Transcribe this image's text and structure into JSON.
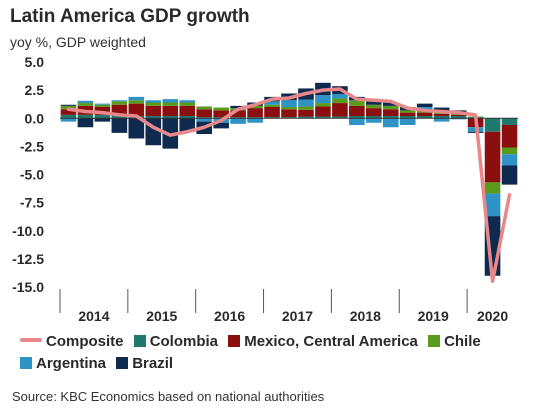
{
  "header": {
    "title": "Latin America GDP growth",
    "subtitle": "yoy %, GDP weighted"
  },
  "footer": {
    "source": "Source: KBC Economics based on national authorities"
  },
  "colors": {
    "Colombia": "#1f7a6d",
    "Mexico, Central America": "#8b0f0f",
    "Chile": "#5a9a1c",
    "Argentina": "#2f93c6",
    "Brazil": "#0e2a4f",
    "Composite": "#e9888a"
  },
  "chart_data": {
    "type": "bar",
    "stacked": true,
    "title": "Latin America GDP growth",
    "subtitle": "yoy %, GDP weighted",
    "ylim": [
      -15,
      5
    ],
    "yticks": [
      "5.0",
      "2.5",
      "0.0",
      "-2.5",
      "-5.0",
      "-7.5",
      "-10.0",
      "-12.5",
      "-15.0"
    ],
    "x_year_labels": [
      "2014",
      "2015",
      "2016",
      "2017",
      "2018",
      "2019",
      "2020"
    ],
    "categories": [
      "2014Q1",
      "2014Q2",
      "2014Q3",
      "2014Q4",
      "2015Q1",
      "2015Q2",
      "2015Q3",
      "2015Q4",
      "2016Q1",
      "2016Q2",
      "2016Q3",
      "2016Q4",
      "2017Q1",
      "2017Q2",
      "2017Q3",
      "2017Q4",
      "2018Q1",
      "2018Q2",
      "2018Q3",
      "2018Q4",
      "2019Q1",
      "2019Q2",
      "2019Q3",
      "2019Q4",
      "2020Q1",
      "2020Q2",
      "2020Q3"
    ],
    "legend_position": "bottom",
    "grid": false,
    "series": [
      {
        "name": "Colombia",
        "values": [
          0.3,
          0.3,
          0.3,
          0.2,
          0.2,
          0.2,
          0.2,
          0.2,
          0.1,
          0.1,
          0.1,
          0.1,
          0.1,
          0.1,
          0.15,
          0.15,
          0.15,
          0.2,
          0.2,
          0.2,
          0.2,
          0.2,
          0.2,
          0.2,
          0.1,
          -1.2,
          -0.6
        ]
      },
      {
        "name": "Mexico, Central America",
        "values": [
          0.5,
          0.8,
          0.7,
          1.0,
          1.1,
          0.9,
          0.9,
          0.9,
          0.7,
          0.6,
          0.6,
          0.8,
          0.9,
          0.7,
          0.6,
          0.9,
          1.2,
          0.9,
          0.7,
          0.6,
          0.3,
          0.3,
          0.2,
          0.1,
          -0.8,
          -4.5,
          -2.0
        ]
      },
      {
        "name": "Chile",
        "values": [
          0.3,
          0.25,
          0.2,
          0.3,
          0.3,
          0.3,
          0.3,
          0.3,
          0.25,
          0.25,
          0.2,
          0.2,
          0.2,
          0.2,
          0.3,
          0.3,
          0.4,
          0.5,
          0.3,
          0.3,
          0.2,
          0.2,
          0.25,
          0.1,
          0.05,
          -1.0,
          -0.6
        ]
      },
      {
        "name": "Argentina",
        "values": [
          -0.3,
          0.2,
          0.1,
          0.1,
          0.3,
          0.2,
          0.3,
          0.2,
          -0.3,
          -0.4,
          -0.5,
          -0.4,
          0.3,
          0.6,
          0.6,
          0.7,
          0.4,
          -0.6,
          -0.4,
          -0.8,
          -0.6,
          0.3,
          -0.3,
          -0.1,
          -0.4,
          -2.0,
          -1.0
        ]
      },
      {
        "name": "Brazil",
        "values": [
          0.1,
          -0.8,
          -0.3,
          -1.3,
          -1.8,
          -2.4,
          -2.7,
          -1.2,
          -1.1,
          -0.5,
          0.2,
          0.3,
          0.4,
          0.6,
          1.0,
          1.1,
          0.7,
          0.3,
          0.3,
          0.3,
          0.3,
          0.3,
          0.3,
          0.3,
          -0.1,
          -5.3,
          -1.7
        ]
      }
    ],
    "composite": {
      "name": "Composite",
      "values": [
        0.8,
        0.6,
        0.5,
        0.3,
        0.2,
        -0.8,
        -1.5,
        -1.2,
        -0.8,
        -0.2,
        0.8,
        1.2,
        1.7,
        1.8,
        2.2,
        2.5,
        2.6,
        1.7,
        1.6,
        1.5,
        0.9,
        0.7,
        0.6,
        0.5,
        0.3,
        -14.5,
        -6.8
      ]
    }
  }
}
